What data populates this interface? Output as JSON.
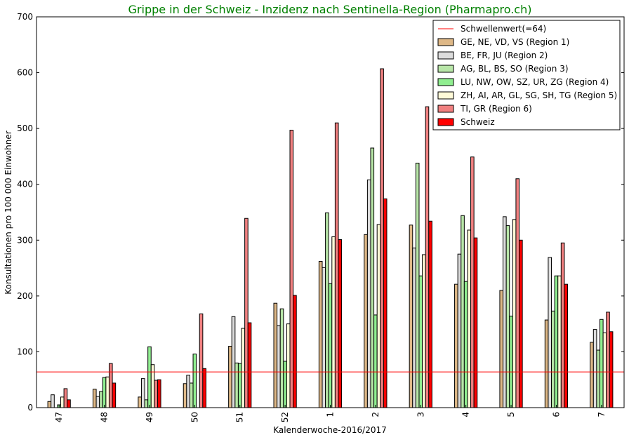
{
  "chart_data": {
    "type": "bar",
    "title": "Grippe in der Schweiz - Inzidenz nach Sentinella-Region (Pharmapro.ch)",
    "title_color": "#008000",
    "xlabel": "Kalenderwoche-2016/2017",
    "ylabel": "Konsultationen pro 100 000 Einwohner",
    "ylim": [
      0,
      700
    ],
    "yticks": [
      0,
      100,
      200,
      300,
      400,
      500,
      600,
      700
    ],
    "categories": [
      "47",
      "48",
      "49",
      "50",
      "51",
      "52",
      "1",
      "2",
      "3",
      "4",
      "5",
      "6",
      "7"
    ],
    "threshold": {
      "label": "Schwellenwert(=64)",
      "value": 64,
      "color": "#ff0000"
    },
    "legend_position": "top-right",
    "series": [
      {
        "name": "GE, NE, VD, VS (Region 1)",
        "color": "#deb887",
        "values": [
          11,
          33,
          19,
          43,
          110,
          187,
          262,
          310,
          327,
          221,
          210,
          157,
          117
        ]
      },
      {
        "name": "BE, FR, JU (Region 2)",
        "color": "#dcdcdc",
        "values": [
          23,
          20,
          52,
          58,
          163,
          147,
          251,
          408,
          286,
          275,
          342,
          269,
          140
        ]
      },
      {
        "name": "AG, BL, BS, SO (Region 3)",
        "color": "#b8e6a8",
        "values": [
          null,
          29,
          14,
          44,
          80,
          177,
          349,
          465,
          438,
          344,
          326,
          173,
          103
        ]
      },
      {
        "name": "LU, NW, OW, SZ, UR, ZG (Region 4)",
        "color": "#90ee90",
        "values": [
          5,
          54,
          109,
          96,
          79,
          83,
          222,
          166,
          236,
          226,
          164,
          236,
          158
        ]
      },
      {
        "name": "ZH, AI, AR, GL, SG, SH, TG (Region 5)",
        "color": "#fffad8",
        "values": [
          19,
          55,
          77,
          null,
          142,
          150,
          306,
          328,
          274,
          318,
          337,
          236,
          134
        ]
      },
      {
        "name": "TI, GR (Region 6)",
        "color": "#f08080",
        "values": [
          34,
          79,
          49,
          168,
          339,
          497,
          510,
          607,
          539,
          449,
          410,
          295,
          171
        ]
      },
      {
        "name": "Schweiz",
        "color": "#ff0000",
        "values": [
          14,
          44,
          50,
          70,
          152,
          201,
          301,
          374,
          334,
          304,
          300,
          221,
          136
        ]
      }
    ]
  }
}
